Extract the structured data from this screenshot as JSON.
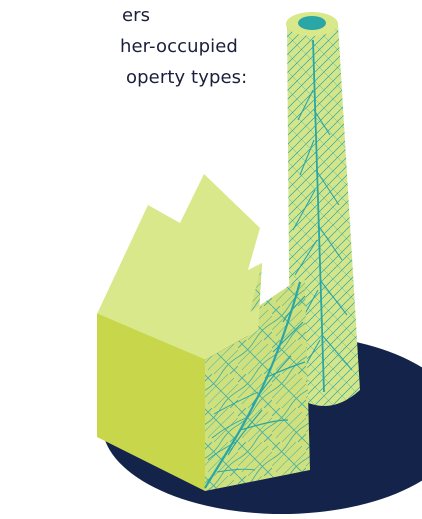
{
  "intro_text": {
    "lines": [
      "ers",
      "her-occupied",
      "operty types:"
    ]
  },
  "illustration": {
    "subject": "factory-with-chimney-icon",
    "colors": {
      "base_ellipse": "#13234a",
      "roof": "#d8e88a",
      "front_wall": "#c7d64a",
      "leaf_pattern_bg": "#cfe07e",
      "leaf_vein": "#2aa6a6",
      "chimney_top_ring": "#d8e88a",
      "chimney_hole": "#2aa6a6"
    }
  }
}
